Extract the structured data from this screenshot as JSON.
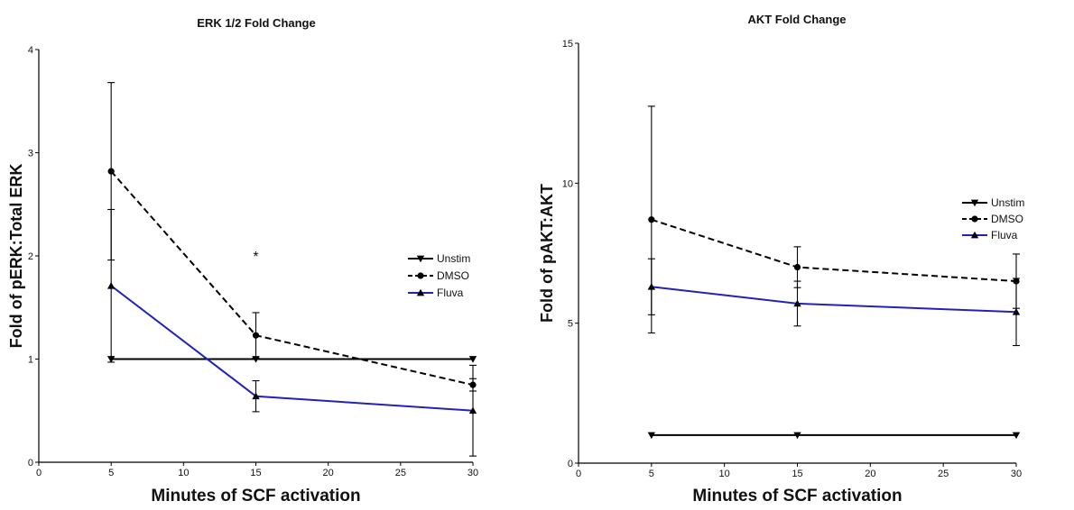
{
  "chart_data": [
    {
      "type": "line",
      "title": "ERK 1/2 Fold Change",
      "xlabel": "Minutes of SCF activation",
      "ylabel": "Fold of pERK:Total ERK",
      "xlim": [
        0,
        30
      ],
      "ylim": [
        0,
        4
      ],
      "xticks": [
        0,
        5,
        10,
        15,
        20,
        25,
        30
      ],
      "yticks": [
        0,
        1,
        2,
        3,
        4
      ],
      "x": [
        5,
        15,
        30
      ],
      "legend_position": "right",
      "series": [
        {
          "name": "Unstim",
          "values": [
            1.0,
            1.0,
            1.0
          ],
          "error": [
            0,
            0,
            0
          ],
          "color": "#000000",
          "dash": "solid",
          "marker": "triangle-down"
        },
        {
          "name": "DMSO",
          "values": [
            2.82,
            1.23,
            0.75
          ],
          "error": [
            0.86,
            0.22,
            0.06
          ],
          "color": "#000000",
          "dash": "dashed",
          "marker": "circle"
        },
        {
          "name": "Fluva",
          "values": [
            1.71,
            0.64,
            0.5
          ],
          "error": [
            0.74,
            0.15,
            0.44
          ],
          "color": "#2222bb",
          "dash": "solid",
          "marker": "triangle-up"
        }
      ],
      "annotations": [
        {
          "text": "*",
          "x": 15,
          "y": 2.0
        }
      ]
    },
    {
      "type": "line",
      "title": "AKT Fold Change",
      "xlabel": "Minutes of SCF activation",
      "ylabel": "Fold of pAKT:AKT",
      "xlim": [
        0,
        30
      ],
      "ylim": [
        0,
        15
      ],
      "xticks": [
        0,
        5,
        10,
        15,
        20,
        25,
        30
      ],
      "yticks": [
        0,
        5,
        10,
        15
      ],
      "x": [
        5,
        15,
        30
      ],
      "legend_position": "right",
      "series": [
        {
          "name": "Unstim",
          "values": [
            1.0,
            1.0,
            1.0
          ],
          "error": [
            0,
            0,
            0
          ],
          "color": "#000000",
          "dash": "solid",
          "marker": "triangle-down"
        },
        {
          "name": "DMSO",
          "values": [
            8.7,
            7.0,
            6.5
          ],
          "error": [
            4.05,
            0.73,
            0.97
          ],
          "color": "#000000",
          "dash": "dashed",
          "marker": "circle"
        },
        {
          "name": "Fluva",
          "values": [
            6.3,
            5.7,
            5.4
          ],
          "error": [
            1.0,
            0.8,
            1.2
          ],
          "color": "#2222bb",
          "dash": "solid",
          "marker": "triangle-up"
        }
      ],
      "annotations": []
    }
  ]
}
